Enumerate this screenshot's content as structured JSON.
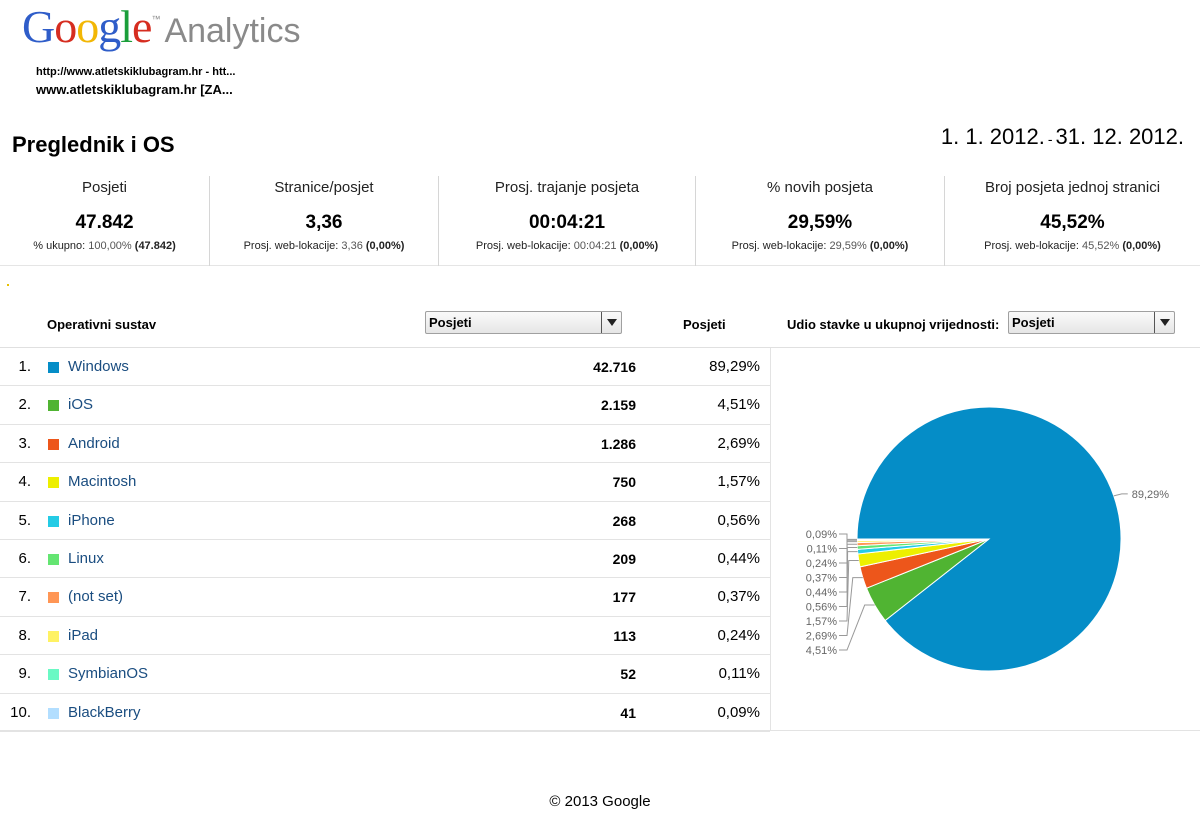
{
  "header": {
    "logo_letters": [
      {
        "ch": "G",
        "color": "#2f5dc9"
      },
      {
        "ch": "o",
        "color": "#d62d20"
      },
      {
        "ch": "o",
        "color": "#f2b705"
      },
      {
        "ch": "g",
        "color": "#2f5dc9"
      },
      {
        "ch": "l",
        "color": "#1a9e3a"
      },
      {
        "ch": "e",
        "color": "#d62d20"
      }
    ],
    "logo_tm": "™",
    "logo_sub": "Analytics",
    "profile_line1": "http://www.atletskiklubagram.hr - htt...",
    "profile_line2": "www.atletskiklubagram.hr [ZA...",
    "report_title": "Preglednik i OS",
    "date_start": "1. 1. 2012.",
    "date_sep": "-",
    "date_end": "31. 12. 2012."
  },
  "metrics": [
    {
      "label": "Posjeti",
      "value": "47.842",
      "sub_prefix": "% ukupno: ",
      "sub_grey": "100,00%",
      "sub_bold": "(47.842)"
    },
    {
      "label": "Stranice/posjet",
      "value": "3,36",
      "sub_prefix": "Prosj. web-lokacije: ",
      "sub_grey": "3,36",
      "sub_bold": "(0,00%)"
    },
    {
      "label": "Prosj. trajanje posjeta",
      "value": "00:04:21",
      "sub_prefix": "Prosj. web-lokacije: ",
      "sub_grey": "00:04:21",
      "sub_bold": "(0,00%)"
    },
    {
      "label": "% novih posjeta",
      "value": "29,59%",
      "sub_prefix": "Prosj. web-lokacije: ",
      "sub_grey": "29,59%",
      "sub_bold": "(0,00%)"
    },
    {
      "label": "Broj posjeta jednoj stranici",
      "value": "45,52%",
      "sub_prefix": "Prosj. web-lokacije: ",
      "sub_grey": "45,52%",
      "sub_bold": "(0,00%)"
    }
  ],
  "table": {
    "col_dimension": "Operativni sustav",
    "metric_select": "Posjeti",
    "col_metric": "Posjeti",
    "share_label": "Udio stavke u ukupnoj vrijednosti:",
    "share_select": "Posjeti",
    "rows": [
      {
        "num": "1.",
        "name": "Windows",
        "value": "42.716",
        "pct": "89,29%",
        "color": "#058dc7"
      },
      {
        "num": "2.",
        "name": "iOS",
        "value": "2.159",
        "pct": "4,51%",
        "color": "#50b432"
      },
      {
        "num": "3.",
        "name": "Android",
        "value": "1.286",
        "pct": "2,69%",
        "color": "#ed561b"
      },
      {
        "num": "4.",
        "name": "Macintosh",
        "value": "750",
        "pct": "1,57%",
        "color": "#edef00"
      },
      {
        "num": "5.",
        "name": "iPhone",
        "value": "268",
        "pct": "0,56%",
        "color": "#24cbe5"
      },
      {
        "num": "6.",
        "name": "Linux",
        "value": "209",
        "pct": "0,44%",
        "color": "#64e572"
      },
      {
        "num": "7.",
        "name": "(not set)",
        "value": "177",
        "pct": "0,37%",
        "color": "#ff9655"
      },
      {
        "num": "8.",
        "name": "iPad",
        "value": "113",
        "pct": "0,24%",
        "color": "#fff263"
      },
      {
        "num": "9.",
        "name": "SymbianOS",
        "value": "52",
        "pct": "0,11%",
        "color": "#6af9c4"
      },
      {
        "num": "10.",
        "name": "BlackBerry",
        "value": "41",
        "pct": "0,09%",
        "color": "#b2deff"
      }
    ]
  },
  "chart_data": {
    "type": "pie",
    "categories": [
      "Windows",
      "iOS",
      "Android",
      "Macintosh",
      "iPhone",
      "Linux",
      "(not set)",
      "iPad",
      "SymbianOS",
      "BlackBerry"
    ],
    "values": [
      89.29,
      4.51,
      2.69,
      1.57,
      0.56,
      0.44,
      0.37,
      0.24,
      0.11,
      0.09
    ],
    "labels": [
      "89,29%",
      "4,51%",
      "2,69%",
      "1,57%",
      "0,56%",
      "0,44%",
      "0,37%",
      "0,24%",
      "0,11%",
      "0,09%"
    ],
    "colors": [
      "#058dc7",
      "#50b432",
      "#ed561b",
      "#edef00",
      "#24cbe5",
      "#64e572",
      "#ff9655",
      "#fff263",
      "#6af9c4",
      "#b2deff"
    ]
  },
  "footer": {
    "copyright": "© 2013 Google"
  }
}
